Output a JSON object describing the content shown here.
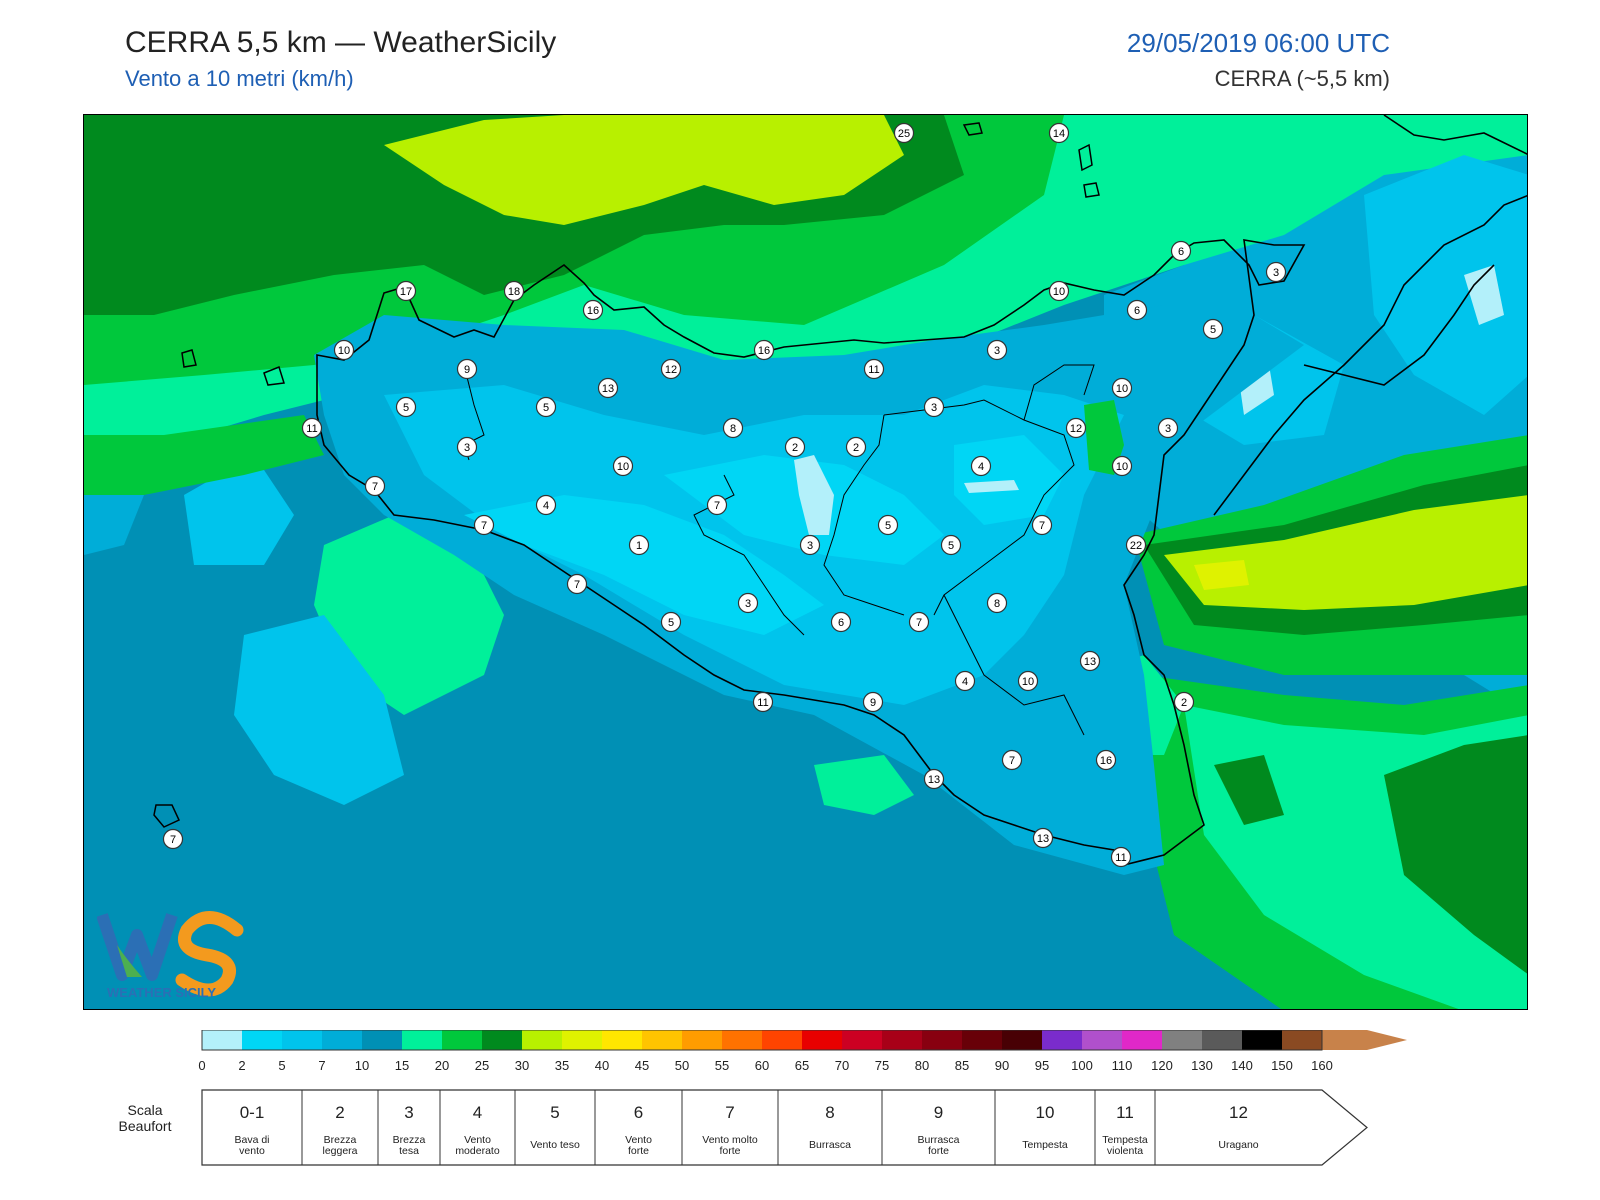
{
  "header": {
    "title": "CERRA 5,5 km — WeatherSicily",
    "subtitle": "Vento a 10 metri (km/h)",
    "datetime": "29/05/2019 06:00 UTC",
    "model": "CERRA (~5,5 km)"
  },
  "logo": {
    "text": "WEATHER SICILY",
    "icon": "weathersicily-logo"
  },
  "map": {
    "region": "Sicily",
    "station_values": [
      {
        "name": "s1",
        "value": "25"
      },
      {
        "name": "s2",
        "value": "14"
      },
      {
        "name": "s3",
        "value": "17"
      },
      {
        "name": "s4",
        "value": "18"
      },
      {
        "name": "s5",
        "value": "16"
      },
      {
        "name": "s6",
        "value": "10"
      },
      {
        "name": "s7",
        "value": "6"
      },
      {
        "name": "s8",
        "value": "3"
      },
      {
        "name": "s9",
        "value": "6"
      },
      {
        "name": "s10",
        "value": "5"
      },
      {
        "name": "s11",
        "value": "10"
      },
      {
        "name": "s12",
        "value": "9"
      },
      {
        "name": "s13",
        "value": "12"
      },
      {
        "name": "s14",
        "value": "16"
      },
      {
        "name": "s15",
        "value": "11"
      },
      {
        "name": "s16",
        "value": "3"
      },
      {
        "name": "s17",
        "value": "13"
      },
      {
        "name": "s18",
        "value": "5"
      },
      {
        "name": "s19",
        "value": "5"
      },
      {
        "name": "s20",
        "value": "11"
      },
      {
        "name": "s21",
        "value": "3"
      },
      {
        "name": "s22",
        "value": "8"
      },
      {
        "name": "s23",
        "value": "2"
      },
      {
        "name": "s24",
        "value": "2"
      },
      {
        "name": "s25",
        "value": "3"
      },
      {
        "name": "s26",
        "value": "10"
      },
      {
        "name": "s27",
        "value": "12"
      },
      {
        "name": "s28",
        "value": "3"
      },
      {
        "name": "s29",
        "value": "4"
      },
      {
        "name": "s30",
        "value": "10"
      },
      {
        "name": "s31",
        "value": "7"
      },
      {
        "name": "s32",
        "value": "10"
      },
      {
        "name": "s33",
        "value": "4"
      },
      {
        "name": "s34",
        "value": "7"
      },
      {
        "name": "s35",
        "value": "7"
      },
      {
        "name": "s36",
        "value": "5"
      },
      {
        "name": "s37",
        "value": "7"
      },
      {
        "name": "s38",
        "value": "22"
      },
      {
        "name": "s39",
        "value": "1"
      },
      {
        "name": "s40",
        "value": "3"
      },
      {
        "name": "s41",
        "value": "5"
      },
      {
        "name": "s42",
        "value": "7"
      },
      {
        "name": "s43",
        "value": "3"
      },
      {
        "name": "s44",
        "value": "8"
      },
      {
        "name": "s45",
        "value": "5"
      },
      {
        "name": "s46",
        "value": "6"
      },
      {
        "name": "s47",
        "value": "7"
      },
      {
        "name": "s48",
        "value": "13"
      },
      {
        "name": "s49",
        "value": "4"
      },
      {
        "name": "s50",
        "value": "10"
      },
      {
        "name": "s51",
        "value": "11"
      },
      {
        "name": "s52",
        "value": "9"
      },
      {
        "name": "s53",
        "value": "2"
      },
      {
        "name": "s54",
        "value": "7"
      },
      {
        "name": "s55",
        "value": "16"
      },
      {
        "name": "s56",
        "value": "13"
      },
      {
        "name": "s57",
        "value": "13"
      },
      {
        "name": "s58",
        "value": "11"
      },
      {
        "name": "s59",
        "value": "7"
      }
    ]
  },
  "legend": {
    "colors": [
      "#b3f0fa",
      "#00d6f5",
      "#00c4ec",
      "#00add8",
      "#0090b5",
      "#00f09a",
      "#00c83c",
      "#008a1e",
      "#b8f000",
      "#dff200",
      "#ffe600",
      "#ffc400",
      "#ff9c00",
      "#ff7200",
      "#ff4400",
      "#e80000",
      "#cc0022",
      "#a80018",
      "#880010",
      "#680008",
      "#480004",
      "#7a2ccc",
      "#b050cc",
      "#e028c8",
      "#808080",
      "#5a5a5a",
      "#000000",
      "#8a4a22",
      "#c8824a"
    ],
    "ticks": [
      "0",
      "2",
      "5",
      "7",
      "10",
      "15",
      "20",
      "25",
      "30",
      "35",
      "40",
      "45",
      "50",
      "55",
      "60",
      "65",
      "70",
      "75",
      "80",
      "85",
      "90",
      "95",
      "100",
      "110",
      "120",
      "130",
      "140",
      "150",
      "160"
    ],
    "beaufort_label_line1": "Scala",
    "beaufort_label_line2": "Beaufort",
    "beaufort": [
      {
        "num": "0-1",
        "name1": "Bava di",
        "name2": "vento"
      },
      {
        "num": "2",
        "name1": "Brezza",
        "name2": "leggera"
      },
      {
        "num": "3",
        "name1": "Brezza",
        "name2": "tesa"
      },
      {
        "num": "4",
        "name1": "Vento",
        "name2": "moderato"
      },
      {
        "num": "5",
        "name1": "Vento teso",
        "name2": ""
      },
      {
        "num": "6",
        "name1": "Vento",
        "name2": "forte"
      },
      {
        "num": "7",
        "name1": "Vento molto",
        "name2": "forte"
      },
      {
        "num": "8",
        "name1": "Burrasca",
        "name2": ""
      },
      {
        "num": "9",
        "name1": "Burrasca",
        "name2": "forte"
      },
      {
        "num": "10",
        "name1": "Tempesta",
        "name2": ""
      },
      {
        "num": "11",
        "name1": "Tempesta",
        "name2": "violenta"
      },
      {
        "num": "12",
        "name1": "Uragano",
        "name2": ""
      }
    ]
  }
}
